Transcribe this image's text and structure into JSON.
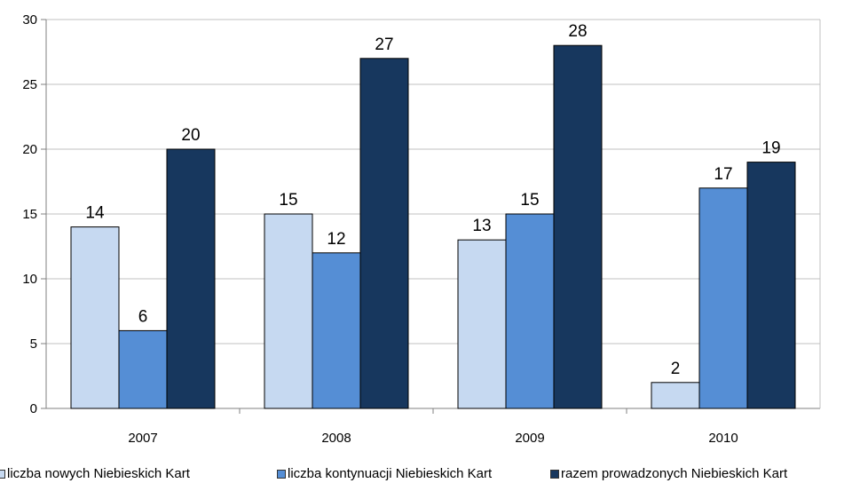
{
  "chart_data": {
    "type": "bar",
    "categories": [
      "2007",
      "2008",
      "2009",
      "2010"
    ],
    "series": [
      {
        "name": "liczba nowych Niebieskich Kart",
        "values": [
          14,
          15,
          13,
          2
        ],
        "color": "#c6d9f1"
      },
      {
        "name": "liczba kontynuacji Niebieskich Kart",
        "values": [
          6,
          12,
          15,
          17
        ],
        "color": "#558ed5"
      },
      {
        "name": "razem prowadzonych Niebieskich Kart",
        "values": [
          20,
          27,
          28,
          19
        ],
        "color": "#17375e"
      }
    ],
    "title": "",
    "xlabel": "",
    "ylabel": "",
    "ylim": [
      0,
      30
    ],
    "yticks": [
      "0",
      "5",
      "10",
      "15",
      "20",
      "25",
      "30"
    ],
    "grid": true,
    "legend_position": "bottom"
  }
}
